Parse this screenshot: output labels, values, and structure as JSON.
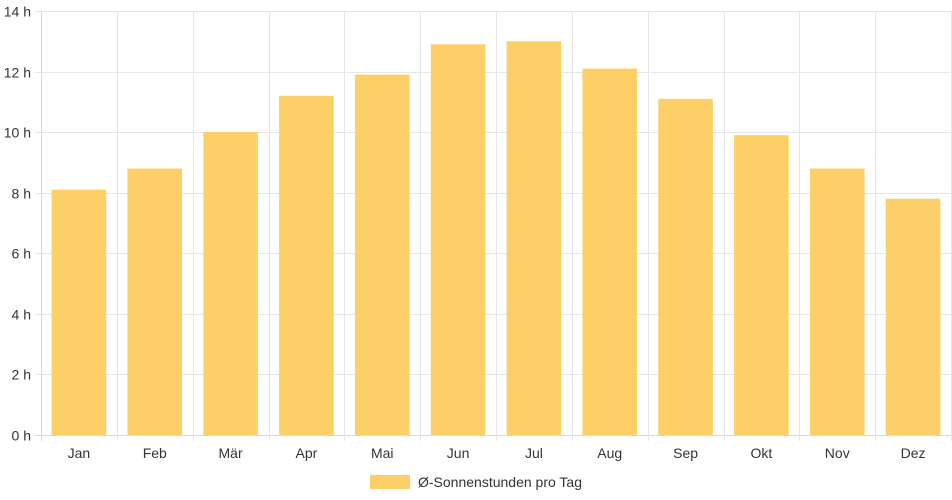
{
  "chart_data": {
    "type": "bar",
    "categories": [
      "Jan",
      "Feb",
      "Mär",
      "Apr",
      "Mai",
      "Jun",
      "Jul",
      "Aug",
      "Sep",
      "Okt",
      "Nov",
      "Dez"
    ],
    "series": [
      {
        "name": "Ø-Sonnenstunden pro Tag",
        "values": [
          8.1,
          8.8,
          10.0,
          11.2,
          11.9,
          12.9,
          13.0,
          12.1,
          11.1,
          9.9,
          8.8,
          7.8
        ],
        "color": "#fdd067"
      }
    ],
    "ylim": [
      0,
      14
    ],
    "yticks": [
      0,
      2,
      4,
      6,
      8,
      10,
      12,
      14
    ],
    "ytick_labels": [
      "0 h",
      "2 h",
      "4 h",
      "6 h",
      "8 h",
      "10 h",
      "12 h",
      "14 h"
    ],
    "grid": true,
    "legend_position": "bottom"
  }
}
